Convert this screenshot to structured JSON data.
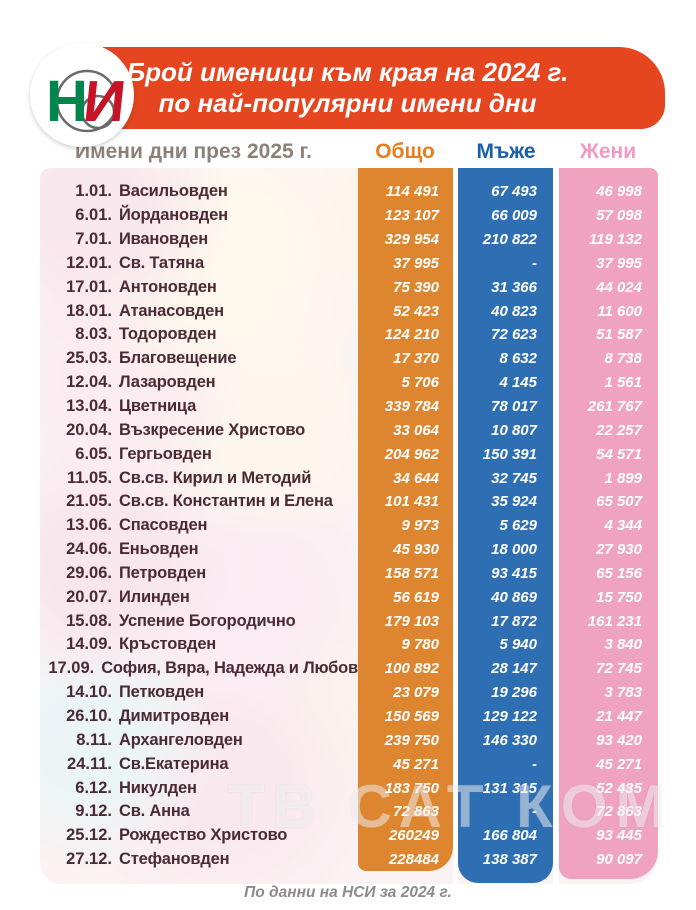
{
  "logo": {
    "letters_green": "Н",
    "letters_red": "И",
    "org": "НСИ"
  },
  "banner": {
    "title_line1": "Брой именици към края на 2024 г.",
    "title_line2": "по най-популярни имени дни"
  },
  "table": {
    "row_header": "Имени дни през 2025 г.",
    "columns": [
      {
        "label": "Общо",
        "color": "#e87d1e"
      },
      {
        "label": "Мъже",
        "color": "#1b5eac"
      },
      {
        "label": "Жени",
        "color": "#f49ac1"
      }
    ],
    "rows": [
      {
        "date": "1.01.",
        "name": "Васильовден",
        "total": "114 491",
        "men": "67 493",
        "women": "46 998"
      },
      {
        "date": "6.01.",
        "name": "Йордановден",
        "total": "123 107",
        "men": "66 009",
        "women": "57 098"
      },
      {
        "date": "7.01.",
        "name": "Ивановден",
        "total": "329 954",
        "men": "210 822",
        "women": "119 132"
      },
      {
        "date": "12.01.",
        "name": "Св. Татяна",
        "total": "37 995",
        "men": "-",
        "women": "37 995"
      },
      {
        "date": "17.01.",
        "name": "Антоновден",
        "total": "75 390",
        "men": "31 366",
        "women": "44 024"
      },
      {
        "date": "18.01.",
        "name": "Атанасовден",
        "total": "52 423",
        "men": "40 823",
        "women": "11 600"
      },
      {
        "date": "8.03.",
        "name": "Тодоровден",
        "total": "124 210",
        "men": "72 623",
        "women": "51 587"
      },
      {
        "date": "25.03.",
        "name": "Благовещение",
        "total": "17 370",
        "men": "8 632",
        "women": "8 738"
      },
      {
        "date": "12.04.",
        "name": "Лазаровден",
        "total": "5 706",
        "men": "4 145",
        "women": "1 561"
      },
      {
        "date": "13.04.",
        "name": "Цветница",
        "total": "339 784",
        "men": "78 017",
        "women": "261 767"
      },
      {
        "date": "20.04.",
        "name": "Възкресение Христово",
        "total": "33 064",
        "men": "10 807",
        "women": "22 257"
      },
      {
        "date": "6.05.",
        "name": "Гергьовден",
        "total": "204 962",
        "men": "150 391",
        "women": "54 571"
      },
      {
        "date": "11.05.",
        "name": "Св.св. Кирил и Методий",
        "total": "34 644",
        "men": "32 745",
        "women": "1 899"
      },
      {
        "date": "21.05.",
        "name": "Св.св. Константин и Елена",
        "total": "101 431",
        "men": "35 924",
        "women": "65 507"
      },
      {
        "date": "13.06.",
        "name": "Спасовден",
        "total": "9 973",
        "men": "5 629",
        "women": "4 344"
      },
      {
        "date": "24.06.",
        "name": "Еньовден",
        "total": "45 930",
        "men": "18 000",
        "women": "27 930"
      },
      {
        "date": "29.06.",
        "name": "Петровден",
        "total": "158 571",
        "men": "93 415",
        "women": "65 156"
      },
      {
        "date": "20.07.",
        "name": "Илинден",
        "total": "56 619",
        "men": "40 869",
        "women": "15 750"
      },
      {
        "date": "15.08.",
        "name": "Успение Богородично",
        "total": "179 103",
        "men": "17 872",
        "women": "161 231"
      },
      {
        "date": "14.09.",
        "name": "Кръстовден",
        "total": "9 780",
        "men": "5 940",
        "women": "3 840"
      },
      {
        "date": "17.09.",
        "name": "София, Вяра, Надежда и Любов",
        "total": "100 892",
        "men": "28 147",
        "women": "72 745"
      },
      {
        "date": "14.10.",
        "name": "Петковден",
        "total": "23 079",
        "men": "19 296",
        "women": "3 783"
      },
      {
        "date": "26.10.",
        "name": "Димитровден",
        "total": "150 569",
        "men": "129 122",
        "women": "21 447"
      },
      {
        "date": "8.11.",
        "name": "Архангеловден",
        "total": "239 750",
        "men": "146 330",
        "women": "93 420"
      },
      {
        "date": "24.11.",
        "name": "Св.Екатерина",
        "total": "45 271",
        "men": "-",
        "women": "45 271"
      },
      {
        "date": "6.12.",
        "name": "Никулден",
        "total": "183 750",
        "men": "131 315",
        "women": "52 435"
      },
      {
        "date": "9.12.",
        "name": "Св. Анна",
        "total": "72 863",
        "men": "-",
        "women": "72 863"
      },
      {
        "date": "25.12.",
        "name": "Рождество Христово",
        "total": "260249",
        "men": "166 804",
        "women": "93 445"
      },
      {
        "date": "27.12.",
        "name": "Стефановден",
        "total": "228484",
        "men": "138 387",
        "women": "90 097"
      }
    ]
  },
  "watermark": "ТВ САТ КОМ",
  "footer": "По данни на НСИ за 2024 г.",
  "colors": {
    "banner": "#e5461f",
    "col_total": "#de862f",
    "col_men": "#2e6fb3",
    "col_women": "#efa3bf",
    "row_text": "#4b2a34",
    "header_text": "#8c8178"
  },
  "chart_data": {
    "type": "table",
    "title": "Брой именици към края на 2024 г. по най-популярни имени дни",
    "subtitle": "Имени дни през 2025 г.",
    "source": "По данни на НСИ за 2024 г.",
    "categories": [
      "1.01. Васильовден",
      "6.01. Йордановден",
      "7.01. Ивановден",
      "12.01. Св. Татяна",
      "17.01. Антоновден",
      "18.01. Атанасовден",
      "8.03. Тодоровден",
      "25.03. Благовещение",
      "12.04. Лазаровден",
      "13.04. Цветница",
      "20.04. Възкресение Христово",
      "6.05. Гергьовден",
      "11.05. Св.св. Кирил и Методий",
      "21.05. Св.св. Константин и Елена",
      "13.06. Спасовден",
      "24.06. Еньовден",
      "29.06. Петровден",
      "20.07. Илинден",
      "15.08. Успение Богородично",
      "14.09. Кръстовден",
      "17.09. София, Вяра, Надежда и Любов",
      "14.10. Петковден",
      "26.10. Димитровден",
      "8.11. Архангеловден",
      "24.11. Св.Екатерина",
      "6.12. Никулден",
      "9.12. Св. Анна",
      "25.12. Рождество Христово",
      "27.12. Стефановден"
    ],
    "series": [
      {
        "name": "Общо",
        "values": [
          114491,
          123107,
          329954,
          37995,
          75390,
          52423,
          124210,
          17370,
          5706,
          339784,
          33064,
          204962,
          34644,
          101431,
          9973,
          45930,
          158571,
          56619,
          179103,
          9780,
          100892,
          23079,
          150569,
          239750,
          45271,
          183750,
          72863,
          260249,
          228484
        ]
      },
      {
        "name": "Мъже",
        "values": [
          67493,
          66009,
          210822,
          null,
          31366,
          40823,
          72623,
          8632,
          4145,
          78017,
          10807,
          150391,
          32745,
          35924,
          5629,
          18000,
          93415,
          40869,
          17872,
          5940,
          28147,
          19296,
          129122,
          146330,
          null,
          131315,
          null,
          166804,
          138387
        ]
      },
      {
        "name": "Жени",
        "values": [
          46998,
          57098,
          119132,
          37995,
          44024,
          11600,
          51587,
          8738,
          1561,
          261767,
          22257,
          54571,
          1899,
          65507,
          4344,
          27930,
          65156,
          15750,
          161231,
          3840,
          72745,
          3783,
          21447,
          93420,
          45271,
          52435,
          72863,
          93445,
          90097
        ]
      }
    ]
  }
}
